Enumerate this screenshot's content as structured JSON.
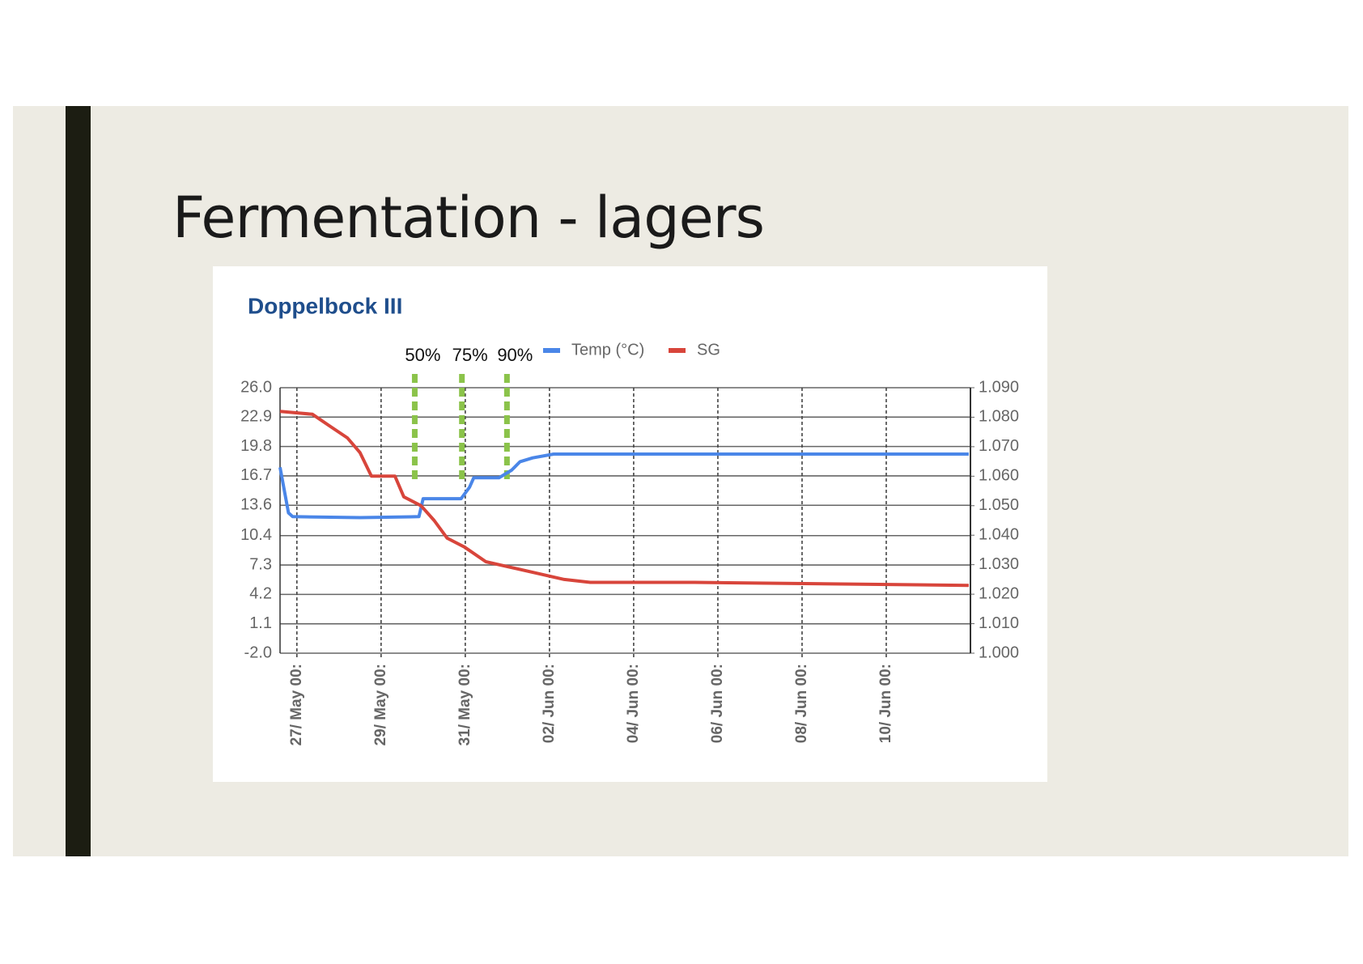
{
  "slide": {
    "title": "Fermentation - lagers"
  },
  "chart_data": {
    "type": "line",
    "title": "Doppelbock III",
    "xlim": [
      -0.4,
      16
    ],
    "xticks": [
      {
        "value": 0,
        "label": "27/ May 00:"
      },
      {
        "value": 2,
        "label": "29/ May 00:"
      },
      {
        "value": 4,
        "label": "31/ May 00:"
      },
      {
        "value": 6,
        "label": "02/ Jun 00:"
      },
      {
        "value": 8,
        "label": "04/ Jun 00:"
      },
      {
        "value": 10,
        "label": "06/ Jun 00:"
      },
      {
        "value": 12,
        "label": "08/ Jun 00:"
      },
      {
        "value": 14,
        "label": "10/ Jun 00:"
      }
    ],
    "ylim": [
      -2,
      26
    ],
    "yticks": [
      {
        "value": -2,
        "label": "-2.0"
      },
      1.1,
      4.2,
      7.3,
      10.4,
      13.6,
      16.7,
      19.8,
      22.9,
      {
        "value": 26,
        "label": "26.0"
      }
    ],
    "y2lim": [
      1.0,
      1.09
    ],
    "y2ticks": [
      {
        "value": 1.0,
        "label": "1.000"
      },
      {
        "value": 1.01,
        "label": "1.010"
      },
      {
        "value": 1.02,
        "label": "1.020"
      },
      {
        "value": 1.03,
        "label": "1.030"
      },
      {
        "value": 1.04,
        "label": "1.040"
      },
      {
        "value": 1.05,
        "label": "1.050"
      },
      {
        "value": 1.06,
        "label": "1.060"
      },
      {
        "value": 1.07,
        "label": "1.070"
      },
      {
        "value": 1.08,
        "label": "1.080"
      },
      {
        "value": 1.09,
        "label": "1.090"
      }
    ],
    "grid": true,
    "legend": "top",
    "series": [
      {
        "name": "Temp (°C)",
        "color": "#4a86e8",
        "x": [
          -0.4,
          -0.2,
          -0.1,
          1.5,
          2.9,
          3.0,
          3.9,
          4.1,
          4.2,
          4.8,
          5.1,
          5.3,
          5.6,
          6.1,
          8.0,
          10.0,
          12.0,
          15.96
        ],
        "values": [
          17.6,
          12.8,
          12.4,
          12.3,
          12.4,
          14.3,
          14.3,
          15.5,
          16.5,
          16.5,
          17.3,
          18.2,
          18.6,
          19.0,
          19.0,
          19.0,
          19.0,
          19.0
        ]
      },
      {
        "name": "SG",
        "color": "#d8453b",
        "axis": "y2",
        "x": [
          -0.4,
          0.37,
          0.78,
          1.2,
          1.5,
          1.77,
          2.33,
          2.54,
          2.95,
          3.26,
          3.57,
          3.98,
          4.49,
          5.11,
          5.73,
          6.35,
          6.97,
          9.44,
          15.96
        ],
        "values": [
          1.082,
          1.081,
          1.077,
          1.073,
          1.068,
          1.06,
          1.06,
          1.053,
          1.05,
          1.045,
          1.039,
          1.036,
          1.031,
          1.029,
          1.027,
          1.025,
          1.024,
          1.024,
          1.023
        ]
      }
    ],
    "annotation_color": "#8bc34a",
    "annotations": [
      {
        "x": 2.8,
        "label": "50%"
      },
      {
        "x": 3.92,
        "label": "75%"
      },
      {
        "x": 4.99,
        "label": "90%"
      }
    ]
  }
}
